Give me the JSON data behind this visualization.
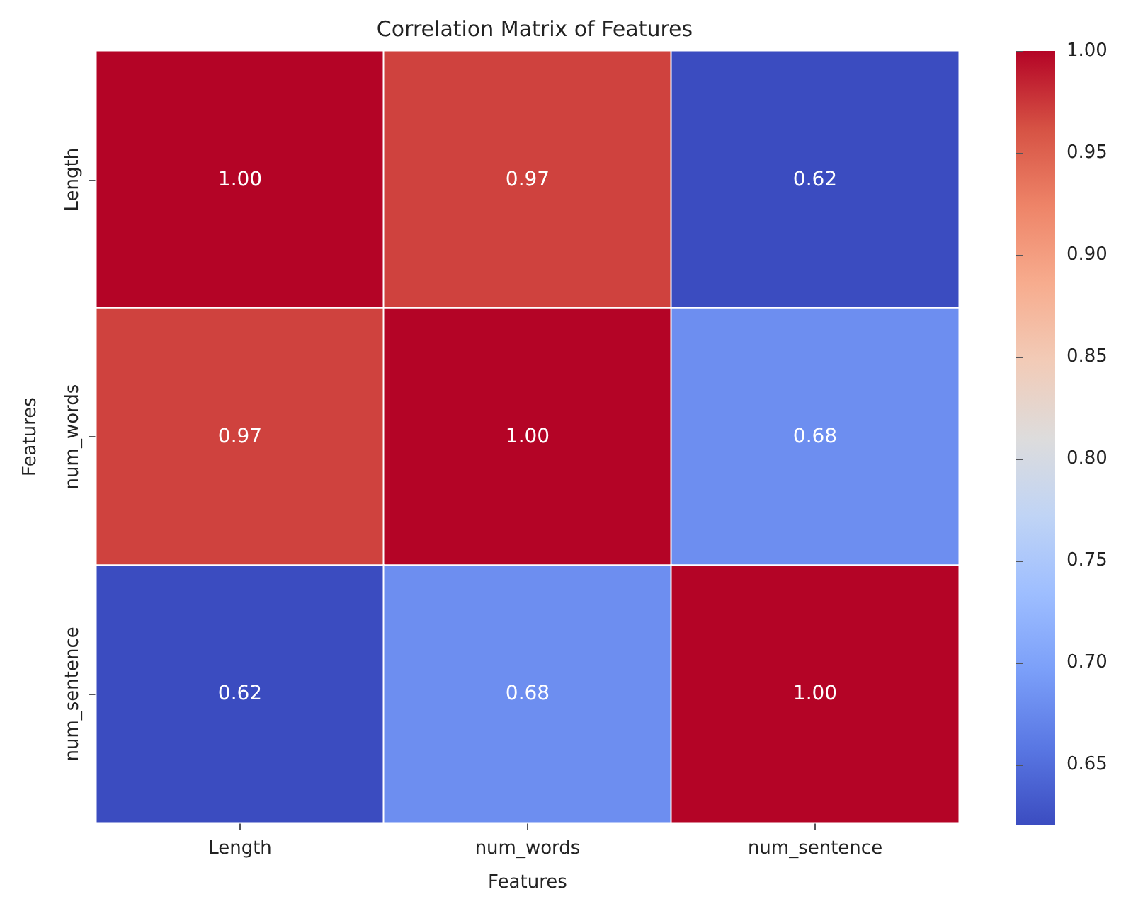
{
  "chart_data": {
    "type": "heatmap",
    "title": "Correlation Matrix of Features",
    "xlabel": "Features",
    "ylabel": "Features",
    "categories": [
      "Length",
      "num_words",
      "num_sentence"
    ],
    "y_categories": [
      "Length",
      "num_words",
      "num_sentence"
    ],
    "cells": [
      [
        1.0,
        0.97,
        0.62
      ],
      [
        0.97,
        1.0,
        0.68
      ],
      [
        0.62,
        0.68,
        1.0
      ]
    ],
    "cell_labels": [
      [
        "1.00",
        "0.97",
        "0.62"
      ],
      [
        "0.97",
        "1.00",
        "0.68"
      ],
      [
        "0.62",
        "0.68",
        "1.00"
      ]
    ],
    "clim": [
      0.62,
      1.0
    ],
    "cticks": [
      {
        "value": 0.65,
        "label": "0.65"
      },
      {
        "value": 0.7,
        "label": "0.70"
      },
      {
        "value": 0.75,
        "label": "0.75"
      },
      {
        "value": 0.8,
        "label": "0.80"
      },
      {
        "value": 0.85,
        "label": "0.85"
      },
      {
        "value": 0.9,
        "label": "0.90"
      },
      {
        "value": 0.95,
        "label": "0.95"
      },
      {
        "value": 1.0,
        "label": "1.00"
      }
    ]
  }
}
